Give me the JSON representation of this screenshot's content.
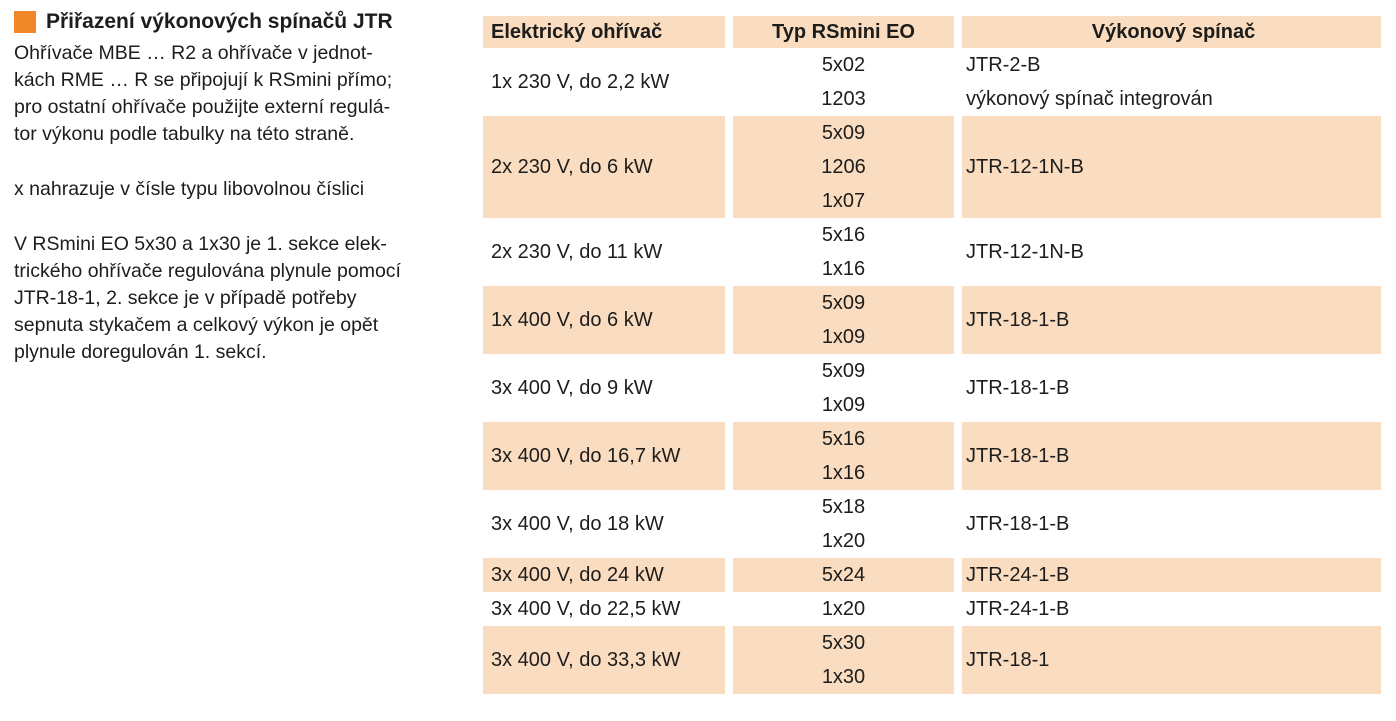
{
  "left_panel": {
    "title": "Přiřazení výkonových spínačů JTR",
    "paragraph_1": "Ohřívače MBE … R2 a ohřívače v jednot-\nkách RME … R se připojují k RSmini přímo;\npro ostatní ohřívače použijte externí regulá-\ntor výkonu podle tabulky na této straně.",
    "paragraph_2": "x nahrazuje v čísle typu libovolnou číslici",
    "paragraph_3": "V RSmini EO 5x30 a 1x30 je 1. sekce elek-\ntrického ohřívače regulována plynule pomocí\nJTR-18-1, 2. sekce je v případě potřeby\nsepnuta stykačem a celkový výkon je opět\nplynule doregulován 1. sekcí."
  },
  "table": {
    "headers": [
      "Elektrický ohřívač",
      "Typ RSmini EO",
      "Výkonový spínač"
    ],
    "rows": [
      {
        "heater": "1x 230 V, do 2,2 kW",
        "types": [
          "5x02",
          "1203"
        ],
        "switches": [
          "JTR-2-B",
          "výkonový spínač integrován"
        ],
        "shaded": false
      },
      {
        "heater": "2x 230 V, do 6 kW",
        "types": [
          "5x09",
          "1206",
          "1x07"
        ],
        "switches": [
          "JTR-12-1N-B"
        ],
        "shaded": true
      },
      {
        "heater": "2x 230 V, do 11 kW",
        "types": [
          "5x16",
          "1x16"
        ],
        "switches": [
          "JTR-12-1N-B"
        ],
        "shaded": false
      },
      {
        "heater": "1x 400 V, do 6 kW",
        "types": [
          "5x09",
          "1x09"
        ],
        "switches": [
          "JTR-18-1-B"
        ],
        "shaded": true
      },
      {
        "heater": "3x 400 V, do 9 kW",
        "types": [
          "5x09",
          "1x09"
        ],
        "switches": [
          "JTR-18-1-B"
        ],
        "shaded": false
      },
      {
        "heater": "3x 400 V, do 16,7 kW",
        "types": [
          "5x16",
          "1x16"
        ],
        "switches": [
          "JTR-18-1-B"
        ],
        "shaded": true
      },
      {
        "heater": "3x 400 V, do 18 kW",
        "types": [
          "5x18",
          "1x20"
        ],
        "switches": [
          "JTR-18-1-B"
        ],
        "shaded": false
      },
      {
        "heater": "3x 400 V, do 24 kW",
        "types": [
          "5x24"
        ],
        "switches": [
          "JTR-24-1-B"
        ],
        "shaded": true
      },
      {
        "heater": "3x 400 V, do 22,5 kW",
        "types": [
          "1x20"
        ],
        "switches": [
          "JTR-24-1-B"
        ],
        "shaded": false
      },
      {
        "heater": "3x 400 V, do 33,3 kW",
        "types": [
          "5x30",
          "1x30"
        ],
        "switches": [
          "JTR-18-1"
        ],
        "shaded": true
      }
    ]
  },
  "colors": {
    "accent_orange": "#f0882a",
    "row_shade": "#fadcc1",
    "text": "#1d1d1b"
  }
}
